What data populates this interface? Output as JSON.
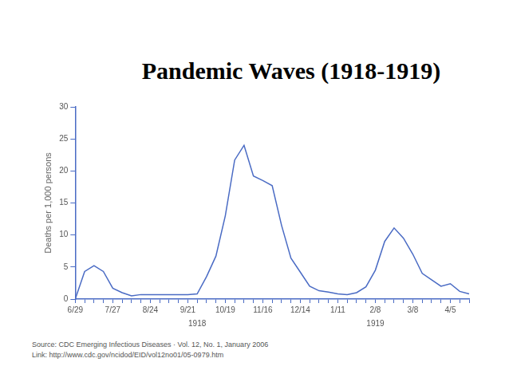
{
  "chart_data": {
    "type": "line",
    "title": "Pandemic Waves (1918-1919)",
    "y_label": "Deaths per 1,000 persons",
    "categories": [
      "6/29",
      null,
      null,
      null,
      "7/27",
      null,
      null,
      null,
      "8/24",
      null,
      null,
      null,
      "9/21",
      null,
      null,
      null,
      "10/19",
      null,
      null,
      null,
      "11/16",
      null,
      null,
      null,
      "12/14",
      null,
      null,
      null,
      "1/11",
      null,
      null,
      null,
      "2/8",
      null,
      null,
      null,
      "3/8",
      null,
      null,
      null,
      "4/5",
      null,
      null
    ],
    "x_group_labels": [
      "1918",
      "1919"
    ],
    "values": [
      0,
      4.3,
      5.2,
      4.3,
      1.7,
      1.0,
      0.5,
      0.7,
      0.7,
      0.7,
      0.7,
      0.7,
      0.7,
      0.8,
      3.5,
      6.7,
      13,
      21.7,
      24,
      19.2,
      18.5,
      17.7,
      11.5,
      6.4,
      4.2,
      2,
      1.3,
      1.1,
      0.8,
      0.7,
      1,
      1.9,
      4.5,
      9,
      11.1,
      9.5,
      7,
      4,
      3,
      2,
      2.4,
      1.2,
      0.8
    ],
    "color": "#4a6bc4",
    "ylim": [
      0,
      30
    ],
    "yticks": [
      0,
      5,
      10,
      15,
      20,
      25,
      30
    ],
    "grid": false,
    "source": "Source: CDC Emerging Infectious Diseases · Vol. 12, No. 1, January 2006",
    "link": "Link: http://www.cdc.gov/ncidod/EID/vol12no01/05-0979.htm"
  }
}
